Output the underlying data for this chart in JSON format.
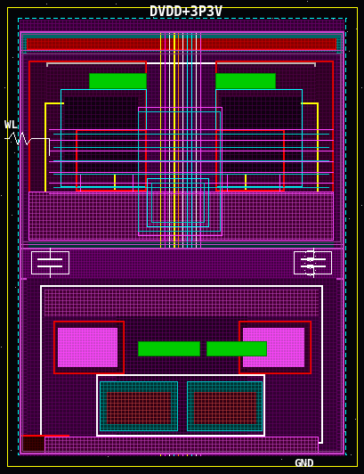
{
  "bg_color": "#050508",
  "fig_width": 4.1,
  "fig_height": 5.32,
  "dpi": 100,
  "title": "DVDD+3P3V",
  "title_color": "#ffffff",
  "title_fontsize": 11,
  "label_WL": "WL",
  "label_GND": "GND",
  "label_color": "#ffffff",
  "label_fontsize": 9,
  "colors": {
    "yellow": "#ffff00",
    "cyan": "#00ffff",
    "magenta": "#ff00ff",
    "magenta2": "#cc44cc",
    "red": "#ff0000",
    "green": "#00cc00",
    "white": "#ffffff",
    "black": "#000000",
    "purple_dark": "#220022",
    "purple_mid": "#440044",
    "purple_bg": "#660066",
    "blue_dark": "#000044",
    "pink": "#ff44ff",
    "orange": "#ff8800",
    "teal": "#008888",
    "cyan_dark": "#004444"
  }
}
